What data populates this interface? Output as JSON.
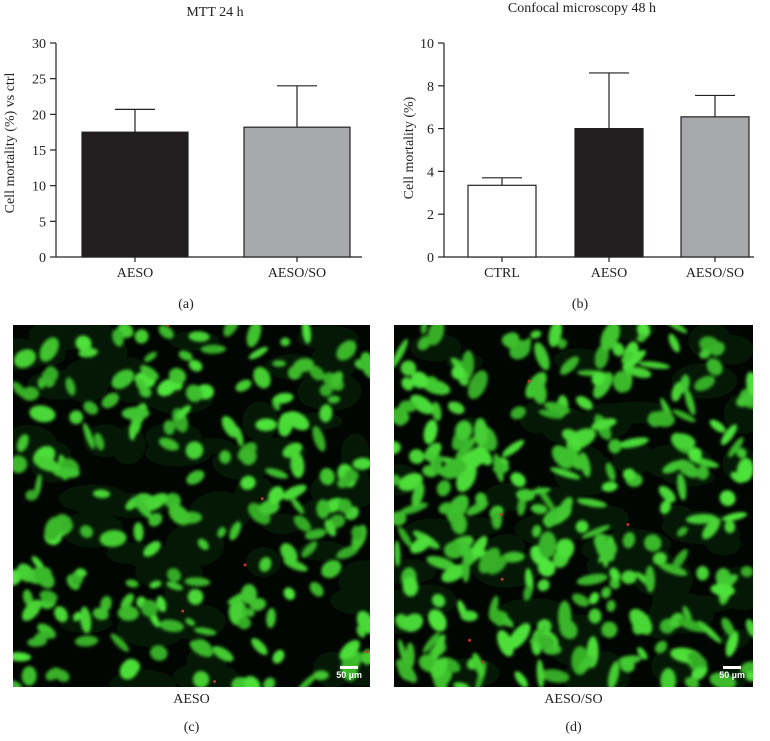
{
  "chart_data": [
    {
      "type": "bar",
      "title": "MTT 24 h",
      "ylabel": "Cell mortality (%) vs ctrl",
      "xlabel": "",
      "categories": [
        "AESO",
        "AESO/SO"
      ],
      "values": [
        17.5,
        18.2
      ],
      "error": [
        3.2,
        5.8
      ],
      "colors": [
        "#231f20",
        "#a7a9ac"
      ],
      "ylim": [
        0,
        30
      ],
      "yticks": [
        "0",
        "5",
        "10",
        "15",
        "20",
        "25",
        "30"
      ],
      "panel_label": "(a)",
      "grid": false
    },
    {
      "type": "bar",
      "title": "Confocal microscopy 48 h",
      "ylabel": "Cell mortality (%)",
      "xlabel": "",
      "categories": [
        "CTRL",
        "AESO",
        "AESO/SO"
      ],
      "values": [
        3.35,
        6.0,
        6.55
      ],
      "error": [
        0.35,
        2.6,
        1.0
      ],
      "colors": [
        "#ffffff",
        "#231f20",
        "#a7a9ac"
      ],
      "ylim": [
        0,
        10
      ],
      "yticks": [
        "0",
        "2",
        "4",
        "6",
        "8",
        "10"
      ],
      "panel_label": "(b)",
      "grid": false
    }
  ],
  "images": [
    {
      "caption": "AESO",
      "panel_label": "(c)",
      "scale_bar": "50 µm"
    },
    {
      "caption": "AESO/SO",
      "panel_label": "(d)",
      "scale_bar": "50 µm"
    }
  ],
  "colors": {
    "cell_fluorescence": "#3ecf3e",
    "background": "#020602",
    "bar_outline": "#222222"
  }
}
